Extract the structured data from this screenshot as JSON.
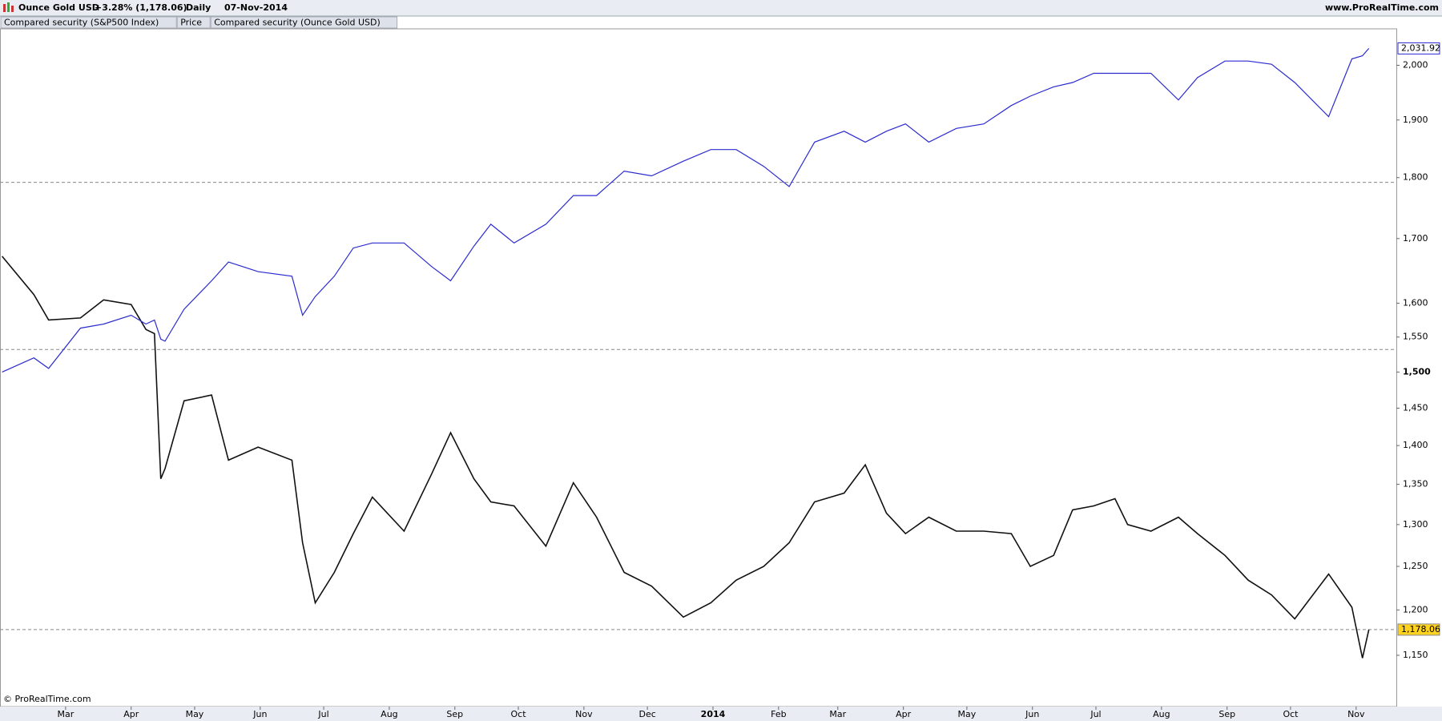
{
  "chart_data": {
    "type": "line",
    "title": "Ounce Gold USD",
    "change": "+3.28% (1,178.06)",
    "period": "Daily",
    "date": "07-Nov-2014",
    "website": "www.ProRealTime.com",
    "footer": "© ProRealTime.com",
    "compare_tab": "Compared security (Ounce Gold USD)",
    "log_scale": true,
    "x": [
      "2013-01-30",
      "2013-02-14",
      "2013-02-21",
      "2013-03-08",
      "2013-03-19",
      "2013-04-01",
      "2013-04-08",
      "2013-04-12",
      "2013-04-15",
      "2013-04-17",
      "2013-04-26",
      "2013-05-09",
      "2013-05-17",
      "2013-05-31",
      "2013-06-16",
      "2013-06-21",
      "2013-06-27",
      "2013-07-06",
      "2013-07-15",
      "2013-07-24",
      "2013-08-08",
      "2013-08-21",
      "2013-08-30",
      "2013-09-10",
      "2013-09-18",
      "2013-09-29",
      "2013-10-14",
      "2013-10-27",
      "2013-11-07",
      "2013-11-20",
      "2013-12-03",
      "2013-12-18",
      "2013-12-31",
      "2014-01-12",
      "2014-01-25",
      "2014-02-06",
      "2014-02-18",
      "2014-03-04",
      "2014-03-14",
      "2014-03-24",
      "2014-04-02",
      "2014-04-13",
      "2014-04-26",
      "2014-05-09",
      "2014-05-22",
      "2014-05-31",
      "2014-06-11",
      "2014-06-20",
      "2014-06-30",
      "2014-07-10",
      "2014-07-16",
      "2014-07-27",
      "2014-08-09",
      "2014-08-18",
      "2014-08-31",
      "2014-09-11",
      "2014-09-22",
      "2014-10-03",
      "2014-10-19",
      "2014-10-30",
      "2014-11-04",
      "2014-11-07"
    ],
    "series": [
      {
        "name": "Price",
        "color": "#111111",
        "last_label": "1,178.06",
        "label_color": "#ffd21f",
        "values": [
          1672,
          1613,
          1575,
          1578,
          1605,
          1598,
          1561,
          1555,
          1357,
          1370,
          1460,
          1468,
          1381,
          1398,
          1381,
          1278,
          1208,
          1243,
          1289,
          1334,
          1292,
          1363,
          1417,
          1357,
          1328,
          1323,
          1274,
          1352,
          1309,
          1243,
          1227,
          1192,
          1208,
          1234,
          1250,
          1278,
          1328,
          1339,
          1375,
          1314,
          1289,
          1309,
          1292,
          1292,
          1289,
          1250,
          1263,
          1318,
          1323,
          1332,
          1300,
          1292,
          1309,
          1289,
          1263,
          1234,
          1217,
          1190,
          1241,
          1203,
          1147,
          1178.06
        ]
      },
      {
        "name": "Compared security (S&P500 Index)",
        "color": "#2b2bd0",
        "last_label": "2,031.92",
        "label_color": "#ffffff",
        "values": [
          1500,
          1520,
          1505,
          1563,
          1569,
          1582,
          1569,
          1575,
          1547,
          1544,
          1591,
          1634,
          1663,
          1648,
          1641,
          1582,
          1610,
          1641,
          1685,
          1693,
          1693,
          1656,
          1634,
          1688,
          1723,
          1693,
          1723,
          1770,
          1770,
          1811,
          1803,
          1828,
          1848,
          1848,
          1819,
          1785,
          1861,
          1880,
          1861,
          1880,
          1893,
          1861,
          1885,
          1893,
          1926,
          1943,
          1960,
          1968,
          1985,
          1985,
          1985,
          1985,
          1936,
          1977,
          2008,
          2008,
          2002,
          1968,
          1906,
          2012,
          2018,
          2031.92
        ]
      }
    ],
    "hlines": [
      1792,
      1532,
      1178.06
    ],
    "xlim": [
      "2013-01-29",
      "2014-11-20"
    ],
    "xticks": [
      {
        "value": "2013-03-01",
        "label": "Mar"
      },
      {
        "value": "2013-04-01",
        "label": "Apr"
      },
      {
        "value": "2013-05-01",
        "label": "May"
      },
      {
        "value": "2013-06-01",
        "label": "Jun"
      },
      {
        "value": "2013-07-01",
        "label": "Jul"
      },
      {
        "value": "2013-08-01",
        "label": "Aug"
      },
      {
        "value": "2013-09-01",
        "label": "Sep"
      },
      {
        "value": "2013-10-01",
        "label": "Oct"
      },
      {
        "value": "2013-11-01",
        "label": "Nov"
      },
      {
        "value": "2013-12-01",
        "label": "Dec"
      },
      {
        "value": "2014-01-01",
        "label": "2014"
      },
      {
        "value": "2014-02-01",
        "label": "Feb"
      },
      {
        "value": "2014-03-01",
        "label": "Mar"
      },
      {
        "value": "2014-04-01",
        "label": "Apr"
      },
      {
        "value": "2014-05-01",
        "label": "May"
      },
      {
        "value": "2014-06-01",
        "label": "Jun"
      },
      {
        "value": "2014-07-01",
        "label": "Jul"
      },
      {
        "value": "2014-08-01",
        "label": "Aug"
      },
      {
        "value": "2014-09-01",
        "label": "Sep"
      },
      {
        "value": "2014-10-01",
        "label": "Oct"
      },
      {
        "value": "2014-11-01",
        "label": "Nov"
      }
    ],
    "ylim": [
      1096,
      2068
    ],
    "yticks": [
      {
        "value": 1150,
        "label": "1,150"
      },
      {
        "value": 1200,
        "label": "1,200"
      },
      {
        "value": 1250,
        "label": "1,250"
      },
      {
        "value": 1300,
        "label": "1,300"
      },
      {
        "value": 1350,
        "label": "1,350"
      },
      {
        "value": 1400,
        "label": "1,400"
      },
      {
        "value": 1450,
        "label": "1,450"
      },
      {
        "value": 1500,
        "label": "1,500"
      },
      {
        "value": 1550,
        "label": "1,550"
      },
      {
        "value": 1600,
        "label": "1,600"
      },
      {
        "value": 1700,
        "label": "1,700"
      },
      {
        "value": 1800,
        "label": "1,800"
      },
      {
        "value": 1900,
        "label": "1,900"
      },
      {
        "value": 2000,
        "label": "2,000"
      }
    ]
  }
}
